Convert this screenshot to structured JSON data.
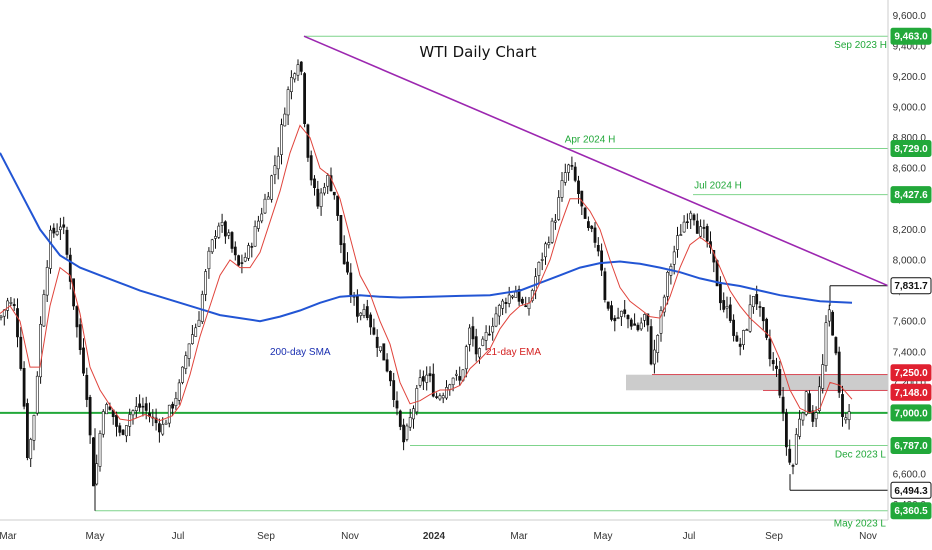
{
  "chart_data": {
    "type": "candlestick",
    "title": "WTI Daily Chart",
    "ylim": [
      6300,
      9700
    ],
    "y_ticks": [
      "6,400.0",
      "6,600.0",
      "6,800.0",
      "7,000.0",
      "7,200.0",
      "7,400.0",
      "7,600.0",
      "7,800.0",
      "8,000.0",
      "8,200.0",
      "8,400.0",
      "8,600.0",
      "8,800.0",
      "9,000.0",
      "9,200.0",
      "9,400.0",
      "9,600.0"
    ],
    "x_ticks": [
      {
        "label": "Mar",
        "bold": false
      },
      {
        "label": "May",
        "bold": false
      },
      {
        "label": "Jul",
        "bold": false
      },
      {
        "label": "Sep",
        "bold": false
      },
      {
        "label": "Nov",
        "bold": false
      },
      {
        "label": "2024",
        "bold": true
      },
      {
        "label": "Mar",
        "bold": false
      },
      {
        "label": "May",
        "bold": false
      },
      {
        "label": "Jul",
        "bold": false
      },
      {
        "label": "Sep",
        "bold": false
      },
      {
        "label": "Nov",
        "bold": false
      }
    ],
    "price_levels": [
      {
        "value": 9463.0,
        "label": "9,463.0",
        "note": "Sep 2023 H",
        "color": "#22a83a",
        "style": "filled"
      },
      {
        "value": 8729.0,
        "label": "8,729.0",
        "note": "Apr 2024 H",
        "color": "#22a83a",
        "style": "filled"
      },
      {
        "value": 8427.6,
        "label": "8,427.6",
        "note": "Jul 2024 H",
        "color": "#22a83a",
        "style": "filled"
      },
      {
        "value": 7831.7,
        "label": "7,831.7",
        "note": "",
        "color": "#111111",
        "style": "outline"
      },
      {
        "value": 7250.0,
        "label": "7,250.0",
        "note": "",
        "color": "#e02030",
        "style": "filled"
      },
      {
        "value": 7148.0,
        "label": "7,148.0",
        "note": "",
        "color": "#e02030",
        "style": "filled"
      },
      {
        "value": 7000.0,
        "label": "7,000.0",
        "note": "",
        "color": "#22a83a",
        "style": "filled"
      },
      {
        "value": 6787.0,
        "label": "6,787.0",
        "note": "Dec 2023 L",
        "color": "#22a83a",
        "style": "filled"
      },
      {
        "value": 6494.3,
        "label": "6,494.3",
        "note": "",
        "color": "#111111",
        "style": "outline"
      },
      {
        "value": 6360.5,
        "label": "6,360.5",
        "note": "May 2023 L",
        "color": "#22a83a",
        "style": "filled"
      }
    ],
    "price_path": [
      [
        0,
        7620
      ],
      [
        8,
        7730
      ],
      [
        15,
        7680
      ],
      [
        22,
        7250
      ],
      [
        28,
        6680
      ],
      [
        35,
        7050
      ],
      [
        42,
        7700
      ],
      [
        50,
        8150
      ],
      [
        62,
        8250
      ],
      [
        70,
        7900
      ],
      [
        78,
        7500
      ],
      [
        86,
        7200
      ],
      [
        94,
        6500
      ],
      [
        103,
        7050
      ],
      [
        112,
        7000
      ],
      [
        120,
        6850
      ],
      [
        130,
        7000
      ],
      [
        142,
        7050
      ],
      [
        152,
        6960
      ],
      [
        162,
        6900
      ],
      [
        172,
        7050
      ],
      [
        180,
        7180
      ],
      [
        188,
        7450
      ],
      [
        198,
        7600
      ],
      [
        208,
        8000
      ],
      [
        218,
        8250
      ],
      [
        228,
        8150
      ],
      [
        238,
        7950
      ],
      [
        248,
        8050
      ],
      [
        258,
        8250
      ],
      [
        268,
        8450
      ],
      [
        278,
        8700
      ],
      [
        286,
        9050
      ],
      [
        294,
        9250
      ],
      [
        300,
        9350
      ],
      [
        306,
        8800
      ],
      [
        312,
        8500
      ],
      [
        318,
        8350
      ],
      [
        326,
        8550
      ],
      [
        334,
        8450
      ],
      [
        342,
        8050
      ],
      [
        350,
        7800
      ],
      [
        358,
        7650
      ],
      [
        366,
        7700
      ],
      [
        374,
        7500
      ],
      [
        382,
        7400
      ],
      [
        392,
        7200
      ],
      [
        398,
        6950
      ],
      [
        404,
        6800
      ],
      [
        412,
        7000
      ],
      [
        420,
        7200
      ],
      [
        428,
        7250
      ],
      [
        436,
        7100
      ],
      [
        444,
        7150
      ],
      [
        452,
        7250
      ],
      [
        460,
        7200
      ],
      [
        470,
        7550
      ],
      [
        478,
        7350
      ],
      [
        486,
        7500
      ],
      [
        496,
        7650
      ],
      [
        506,
        7750
      ],
      [
        516,
        7800
      ],
      [
        526,
        7650
      ],
      [
        536,
        7900
      ],
      [
        546,
        8100
      ],
      [
        556,
        8300
      ],
      [
        564,
        8550
      ],
      [
        570,
        8620
      ],
      [
        578,
        8450
      ],
      [
        586,
        8200
      ],
      [
        594,
        8150
      ],
      [
        600,
        8050
      ],
      [
        606,
        7700
      ],
      [
        614,
        7600
      ],
      [
        622,
        7650
      ],
      [
        630,
        7600
      ],
      [
        638,
        7550
      ],
      [
        646,
        7650
      ],
      [
        652,
        7300
      ],
      [
        660,
        7600
      ],
      [
        668,
        7900
      ],
      [
        676,
        8100
      ],
      [
        684,
        8250
      ],
      [
        692,
        8350
      ],
      [
        698,
        8200
      ],
      [
        706,
        8150
      ],
      [
        714,
        7950
      ],
      [
        722,
        7700
      ],
      [
        730,
        7650
      ],
      [
        738,
        7400
      ],
      [
        746,
        7550
      ],
      [
        754,
        7800
      ],
      [
        762,
        7600
      ],
      [
        770,
        7350
      ],
      [
        778,
        7250
      ],
      [
        786,
        6800
      ],
      [
        792,
        6600
      ],
      [
        798,
        6950
      ],
      [
        806,
        7100
      ],
      [
        814,
        6950
      ],
      [
        822,
        7250
      ],
      [
        828,
        7700
      ],
      [
        834,
        7500
      ],
      [
        840,
        7050
      ],
      [
        846,
        6950
      ],
      [
        852,
        7050
      ]
    ],
    "ema21_path": [
      [
        0,
        7650
      ],
      [
        10,
        7700
      ],
      [
        20,
        7600
      ],
      [
        30,
        7300
      ],
      [
        40,
        7300
      ],
      [
        50,
        7700
      ],
      [
        60,
        7950
      ],
      [
        70,
        7900
      ],
      [
        80,
        7650
      ],
      [
        90,
        7300
      ],
      [
        100,
        7150
      ],
      [
        110,
        7050
      ],
      [
        120,
        6960
      ],
      [
        130,
        6950
      ],
      [
        145,
        6990
      ],
      [
        160,
        6950
      ],
      [
        172,
        6980
      ],
      [
        180,
        7050
      ],
      [
        190,
        7250
      ],
      [
        200,
        7500
      ],
      [
        210,
        7700
      ],
      [
        220,
        7900
      ],
      [
        230,
        8000
      ],
      [
        240,
        7950
      ],
      [
        250,
        7950
      ],
      [
        260,
        8050
      ],
      [
        270,
        8250
      ],
      [
        280,
        8450
      ],
      [
        290,
        8700
      ],
      [
        300,
        8880
      ],
      [
        310,
        8800
      ],
      [
        320,
        8600
      ],
      [
        330,
        8550
      ],
      [
        340,
        8400
      ],
      [
        350,
        8150
      ],
      [
        360,
        7900
      ],
      [
        370,
        7780
      ],
      [
        380,
        7600
      ],
      [
        390,
        7450
      ],
      [
        400,
        7200
      ],
      [
        410,
        7060
      ],
      [
        420,
        7080
      ],
      [
        430,
        7120
      ],
      [
        440,
        7150
      ],
      [
        450,
        7150
      ],
      [
        460,
        7180
      ],
      [
        470,
        7290
      ],
      [
        480,
        7350
      ],
      [
        490,
        7420
      ],
      [
        500,
        7550
      ],
      [
        510,
        7640
      ],
      [
        520,
        7700
      ],
      [
        530,
        7720
      ],
      [
        540,
        7850
      ],
      [
        550,
        8000
      ],
      [
        560,
        8220
      ],
      [
        570,
        8400
      ],
      [
        580,
        8400
      ],
      [
        590,
        8320
      ],
      [
        600,
        8200
      ],
      [
        610,
        8000
      ],
      [
        620,
        7820
      ],
      [
        630,
        7730
      ],
      [
        640,
        7680
      ],
      [
        650,
        7630
      ],
      [
        660,
        7620
      ],
      [
        670,
        7760
      ],
      [
        680,
        7950
      ],
      [
        690,
        8100
      ],
      [
        700,
        8150
      ],
      [
        710,
        8100
      ],
      [
        720,
        7950
      ],
      [
        730,
        7800
      ],
      [
        740,
        7700
      ],
      [
        750,
        7620
      ],
      [
        760,
        7560
      ],
      [
        770,
        7500
      ],
      [
        780,
        7350
      ],
      [
        790,
        7150
      ],
      [
        800,
        7030
      ],
      [
        810,
        7000
      ],
      [
        820,
        7030
      ],
      [
        830,
        7200
      ],
      [
        840,
        7180
      ],
      [
        852,
        7090
      ]
    ],
    "sma200_path": [
      [
        0,
        8700
      ],
      [
        20,
        8450
      ],
      [
        40,
        8200
      ],
      [
        60,
        8030
      ],
      [
        80,
        7950
      ],
      [
        100,
        7900
      ],
      [
        120,
        7850
      ],
      [
        140,
        7800
      ],
      [
        160,
        7760
      ],
      [
        180,
        7720
      ],
      [
        200,
        7680
      ],
      [
        220,
        7640
      ],
      [
        240,
        7620
      ],
      [
        260,
        7600
      ],
      [
        280,
        7630
      ],
      [
        300,
        7670
      ],
      [
        320,
        7720
      ],
      [
        340,
        7760
      ],
      [
        360,
        7770
      ],
      [
        380,
        7760
      ],
      [
        400,
        7755
      ],
      [
        430,
        7760
      ],
      [
        460,
        7765
      ],
      [
        490,
        7770
      ],
      [
        520,
        7800
      ],
      [
        540,
        7850
      ],
      [
        560,
        7900
      ],
      [
        580,
        7950
      ],
      [
        600,
        7980
      ],
      [
        620,
        7990
      ],
      [
        640,
        7975
      ],
      [
        660,
        7950
      ],
      [
        680,
        7920
      ],
      [
        700,
        7880
      ],
      [
        720,
        7850
      ],
      [
        740,
        7830
      ],
      [
        760,
        7800
      ],
      [
        780,
        7770
      ],
      [
        800,
        7750
      ],
      [
        820,
        7730
      ],
      [
        852,
        7720
      ]
    ],
    "trendline": {
      "x1": 304,
      "y1": 9463,
      "x2": 888,
      "y2": 7831.7
    },
    "support_zone": [
      7148.0,
      7250.0
    ],
    "annotations": [
      {
        "text": "200-day SMA",
        "color": "#1a2fb0",
        "x": 270,
        "y": 7380
      },
      {
        "text": "21-day EMA",
        "color": "#d42020",
        "x": 486,
        "y": 7380
      }
    ]
  }
}
